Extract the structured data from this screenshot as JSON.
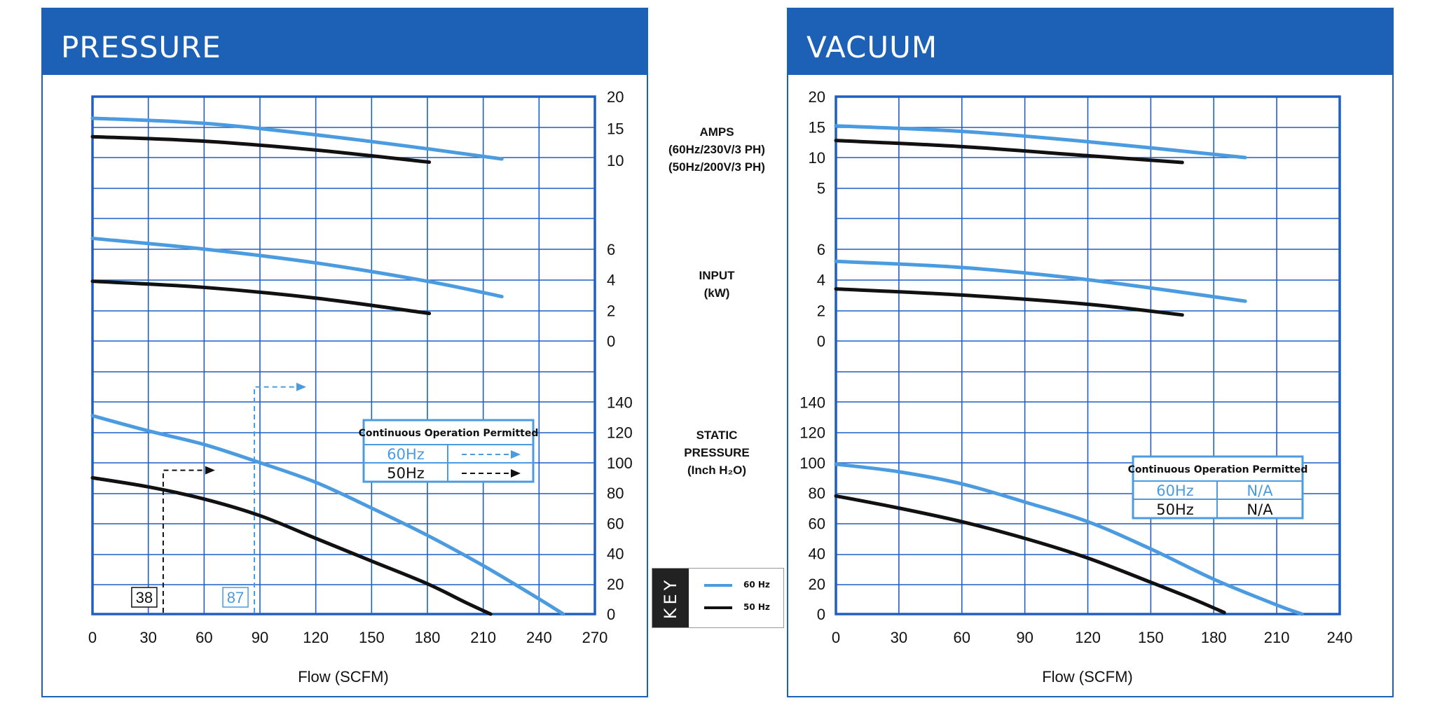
{
  "colors": {
    "blue": "#1c61b5",
    "grid": "#1f5fc4",
    "series60": "#4a9be0",
    "series50": "#111111"
  },
  "mid_labels": {
    "amps": [
      "AMPS",
      "(60Hz/230V/3 PH)",
      "(50Hz/200V/3 PH)"
    ],
    "input": [
      "INPUT",
      "(kW)"
    ],
    "static": [
      "STATIC",
      "PRESSURE",
      "(Inch H₂O)"
    ]
  },
  "key": {
    "tag": "KEY",
    "items": [
      {
        "label": "60 Hz",
        "color": "#4a9be0"
      },
      {
        "label": "50 Hz",
        "color": "#111111"
      }
    ]
  },
  "chart_data": [
    {
      "type": "line",
      "title": "PRESSURE",
      "xlabel": "Flow (SCFM)",
      "xlim": [
        0,
        270
      ],
      "xticks": [
        0,
        30,
        60,
        90,
        120,
        150,
        180,
        210,
        240,
        270
      ],
      "grid": true,
      "sections": {
        "amps": {
          "ylim": [
            8,
            20
          ],
          "ticks": [
            10,
            15,
            20
          ]
        },
        "input": {
          "ylim": [
            0,
            8
          ],
          "ticks": [
            0,
            2,
            4,
            6
          ]
        },
        "static": {
          "ylim": [
            0,
            160
          ],
          "ticks": [
            0,
            20,
            40,
            60,
            80,
            100,
            120,
            140
          ]
        }
      },
      "series": [
        {
          "name": "60 Hz",
          "section": "amps",
          "x": [
            0,
            60,
            120,
            180,
            220
          ],
          "y": [
            16.6,
            15.8,
            14.0,
            11.8,
            10.2
          ]
        },
        {
          "name": "50 Hz",
          "section": "amps",
          "x": [
            0,
            60,
            120,
            181
          ],
          "y": [
            13.7,
            13.0,
            11.6,
            9.7
          ]
        },
        {
          "name": "60 Hz",
          "section": "input",
          "x": [
            0,
            60,
            120,
            180,
            220
          ],
          "y": [
            6.7,
            6.0,
            5.1,
            3.9,
            2.9
          ]
        },
        {
          "name": "50 Hz",
          "section": "input",
          "x": [
            0,
            60,
            120,
            181
          ],
          "y": [
            3.9,
            3.5,
            2.8,
            1.8
          ]
        },
        {
          "name": "60 Hz",
          "section": "static",
          "x": [
            0,
            30,
            60,
            90,
            120,
            150,
            180,
            210,
            240,
            253
          ],
          "y": [
            131,
            121,
            112,
            100,
            87,
            70,
            52,
            32,
            10,
            0
          ]
        },
        {
          "name": "50 Hz",
          "section": "static",
          "x": [
            0,
            30,
            60,
            90,
            120,
            150,
            180,
            200,
            214
          ],
          "y": [
            90,
            84,
            76,
            65,
            50,
            35,
            20,
            8,
            0
          ]
        }
      ],
      "markers": [
        {
          "label": "38",
          "x": 38,
          "color": "#111111",
          "y_arrow": 95
        },
        {
          "label": "87",
          "x": 87,
          "color": "#4a9be0",
          "y_arrow": 150
        }
      ],
      "table": {
        "title": "Continuous Operation Permitted",
        "rows": [
          {
            "label": "60Hz",
            "value": "⇢",
            "color": "#4a9be0"
          },
          {
            "label": "50Hz",
            "value": "⇢",
            "color": "#111111"
          }
        ]
      }
    },
    {
      "type": "line",
      "title": "VACUUM",
      "xlabel": "Flow (SCFM)",
      "xlim": [
        0,
        240
      ],
      "xticks": [
        0,
        30,
        60,
        90,
        120,
        150,
        180,
        210,
        240
      ],
      "grid": true,
      "sections": {
        "amps": {
          "ylim": [
            0,
            20
          ],
          "ticks": [
            5,
            10,
            15,
            20
          ]
        },
        "input": {
          "ylim": [
            0,
            8
          ],
          "ticks": [
            0,
            2,
            4,
            6
          ]
        },
        "static": {
          "ylim": [
            0,
            160
          ],
          "ticks": [
            0,
            20,
            40,
            60,
            80,
            100,
            120,
            140
          ]
        }
      },
      "series": [
        {
          "name": "60 Hz",
          "section": "amps",
          "x": [
            0,
            60,
            120,
            195
          ],
          "y": [
            15.2,
            14.3,
            12.6,
            10.0
          ]
        },
        {
          "name": "50 Hz",
          "section": "amps",
          "x": [
            0,
            60,
            120,
            165
          ],
          "y": [
            12.8,
            11.8,
            10.3,
            9.2
          ]
        },
        {
          "name": "60 Hz",
          "section": "input",
          "x": [
            0,
            60,
            120,
            195
          ],
          "y": [
            5.2,
            4.8,
            4.0,
            2.6
          ]
        },
        {
          "name": "50 Hz",
          "section": "input",
          "x": [
            0,
            60,
            120,
            165
          ],
          "y": [
            3.4,
            3.0,
            2.4,
            1.7
          ]
        },
        {
          "name": "60 Hz",
          "section": "static",
          "x": [
            0,
            30,
            60,
            90,
            120,
            150,
            180,
            210,
            222
          ],
          "y": [
            99,
            94,
            86,
            74,
            61,
            43,
            23,
            6,
            0
          ]
        },
        {
          "name": "50 Hz",
          "section": "static",
          "x": [
            0,
            30,
            60,
            90,
            120,
            150,
            170,
            185
          ],
          "y": [
            78,
            70,
            61,
            50,
            37,
            21,
            10,
            1
          ]
        }
      ],
      "table": {
        "title": "Continuous Operation Permitted",
        "rows": [
          {
            "label": "60Hz",
            "value": "N/A",
            "color": "#4a9be0"
          },
          {
            "label": "50Hz",
            "value": "N/A",
            "color": "#111111"
          }
        ]
      }
    }
  ]
}
